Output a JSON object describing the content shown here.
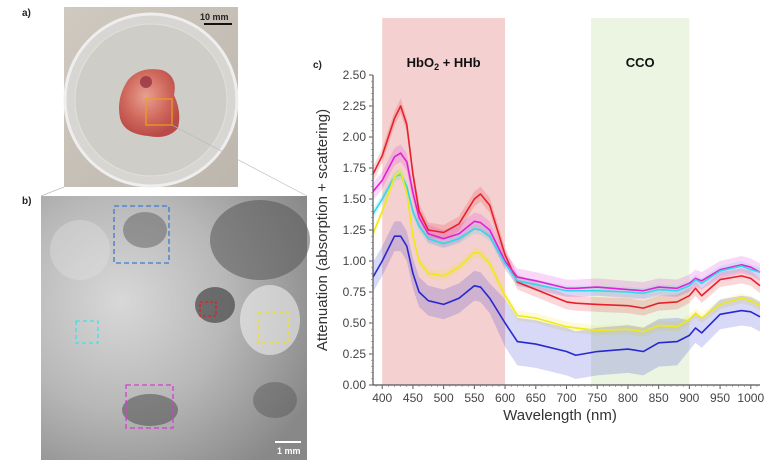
{
  "panels": {
    "a_label": "a)",
    "b_label": "b)",
    "c_label": "c)",
    "a_scalebar": "10 mm",
    "b_scalebar": "1 mm"
  },
  "roi_colors": {
    "orange": "#e8a020",
    "blue": "#3a7bd5",
    "cyan": "#40e0e8",
    "red": "#e02020",
    "yellow": "#f0e020",
    "magenta": "#d040d0"
  },
  "chart_data": {
    "type": "line",
    "title": "",
    "xlabel": "Wavelength (nm)",
    "ylabel": "Attenuation (absorption + scattering)",
    "xlim": [
      385,
      1015
    ],
    "ylim": [
      0,
      2.5
    ],
    "xticks": [
      "400",
      "450",
      "500",
      "550",
      "600",
      "650",
      "700",
      "750",
      "800",
      "850",
      "900",
      "950",
      "1000"
    ],
    "yticks": [
      "0.00",
      "0.25",
      "0.50",
      "0.75",
      "1.00",
      "1.25",
      "1.50",
      "1.75",
      "2.00",
      "2.25",
      "2.50"
    ],
    "regions": [
      {
        "label_main": "HbO",
        "label_sub": "2",
        "label_rest": " + HHb",
        "x0": 400,
        "x1": 600,
        "color": "#f2c4c4"
      },
      {
        "label_main": "CCO",
        "label_sub": "",
        "label_rest": "",
        "x0": 740,
        "x1": 900,
        "color": "#e6f2da"
      }
    ],
    "x": [
      385,
      400,
      420,
      430,
      440,
      450,
      460,
      475,
      500,
      525,
      550,
      560,
      575,
      600,
      620,
      650,
      700,
      715,
      750,
      800,
      825,
      850,
      880,
      900,
      910,
      920,
      950,
      985,
      1000,
      1015
    ],
    "series": [
      {
        "name": "red",
        "color": "#e8202a",
        "band": 0.06,
        "values": [
          1.7,
          1.85,
          2.15,
          2.25,
          2.1,
          1.7,
          1.4,
          1.25,
          1.23,
          1.3,
          1.5,
          1.54,
          1.45,
          1.05,
          0.83,
          0.77,
          0.67,
          0.66,
          0.65,
          0.64,
          0.62,
          0.66,
          0.67,
          0.72,
          0.78,
          0.72,
          0.85,
          0.88,
          0.86,
          0.8
        ]
      },
      {
        "name": "magenta",
        "color": "#e020d8",
        "band": 0.07,
        "values": [
          1.56,
          1.65,
          1.84,
          1.87,
          1.8,
          1.55,
          1.35,
          1.22,
          1.18,
          1.22,
          1.32,
          1.31,
          1.25,
          1.0,
          0.87,
          0.84,
          0.78,
          0.78,
          0.79,
          0.77,
          0.76,
          0.79,
          0.78,
          0.82,
          0.86,
          0.84,
          0.93,
          0.97,
          0.95,
          0.91
        ]
      },
      {
        "name": "cyan",
        "color": "#30d8e8",
        "band": 0.04,
        "values": [
          1.38,
          1.5,
          1.68,
          1.7,
          1.6,
          1.4,
          1.28,
          1.18,
          1.14,
          1.18,
          1.26,
          1.25,
          1.2,
          0.98,
          0.84,
          0.81,
          0.76,
          0.76,
          0.76,
          0.75,
          0.74,
          0.77,
          0.76,
          0.8,
          0.85,
          0.82,
          0.92,
          0.96,
          0.93,
          0.91
        ]
      },
      {
        "name": "yellow",
        "color": "#f0e818",
        "band": 0.04,
        "values": [
          1.22,
          1.4,
          1.68,
          1.72,
          1.55,
          1.2,
          1.0,
          0.9,
          0.88,
          0.95,
          1.07,
          1.06,
          0.98,
          0.72,
          0.56,
          0.54,
          0.47,
          0.46,
          0.44,
          0.45,
          0.43,
          0.48,
          0.47,
          0.53,
          0.58,
          0.54,
          0.65,
          0.7,
          0.68,
          0.64
        ]
      },
      {
        "name": "blue",
        "color": "#2828d0",
        "band": 0.12,
        "values": [
          0.87,
          1.0,
          1.2,
          1.2,
          1.12,
          0.9,
          0.75,
          0.68,
          0.65,
          0.7,
          0.8,
          0.79,
          0.7,
          0.5,
          0.35,
          0.33,
          0.27,
          0.24,
          0.27,
          0.29,
          0.27,
          0.34,
          0.35,
          0.4,
          0.46,
          0.42,
          0.57,
          0.6,
          0.59,
          0.55
        ]
      }
    ]
  }
}
